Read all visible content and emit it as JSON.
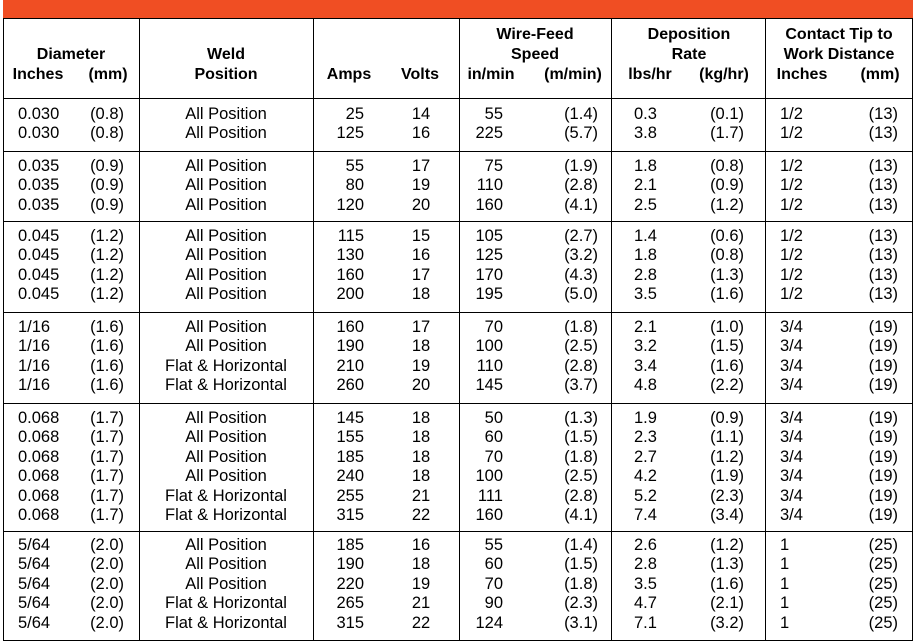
{
  "header": {
    "columns": [
      {
        "title": [
          "Diameter"
        ],
        "units": [
          "Inches",
          "(mm)"
        ]
      },
      {
        "title": [
          "Weld"
        ],
        "units": [
          "Position"
        ]
      },
      {
        "title": [],
        "units": [
          "Amps"
        ]
      },
      {
        "title": [],
        "units": [
          "Volts"
        ]
      },
      {
        "title": [
          "Wire-Feed",
          "Speed"
        ],
        "units": [
          "in/min",
          "(m/min)"
        ]
      },
      {
        "title": [
          "Deposition",
          "Rate"
        ],
        "units": [
          "lbs/hr",
          "(kg/hr)"
        ]
      },
      {
        "title": [
          "Contact Tip to",
          "Work Distance"
        ],
        "units": [
          "Inches",
          "(mm)"
        ]
      }
    ]
  },
  "table": {
    "groups": [
      [
        [
          "0.030",
          "(0.8)",
          "All Position",
          "25",
          "14",
          "55",
          "(1.4)",
          "0.3",
          "(0.1)",
          "1/2",
          "(13)"
        ],
        [
          "0.030",
          "(0.8)",
          "All Position",
          "125",
          "16",
          "225",
          "(5.7)",
          "3.8",
          "(1.7)",
          "1/2",
          "(13)"
        ]
      ],
      [
        [
          "0.035",
          "(0.9)",
          "All Position",
          "55",
          "17",
          "75",
          "(1.9)",
          "1.8",
          "(0.8)",
          "1/2",
          "(13)"
        ],
        [
          "0.035",
          "(0.9)",
          "All Position",
          "80",
          "19",
          "110",
          "(2.8)",
          "2.1",
          "(0.9)",
          "1/2",
          "(13)"
        ],
        [
          "0.035",
          "(0.9)",
          "All Position",
          "120",
          "20",
          "160",
          "(4.1)",
          "2.5",
          "(1.2)",
          "1/2",
          "(13)"
        ]
      ],
      [
        [
          "0.045",
          "(1.2)",
          "All Position",
          "115",
          "15",
          "105",
          "(2.7)",
          "1.4",
          "(0.6)",
          "1/2",
          "(13)"
        ],
        [
          "0.045",
          "(1.2)",
          "All Position",
          "130",
          "16",
          "125",
          "(3.2)",
          "1.8",
          "(0.8)",
          "1/2",
          "(13)"
        ],
        [
          "0.045",
          "(1.2)",
          "All Position",
          "160",
          "17",
          "170",
          "(4.3)",
          "2.8",
          "(1.3)",
          "1/2",
          "(13)"
        ],
        [
          "0.045",
          "(1.2)",
          "All Position",
          "200",
          "18",
          "195",
          "(5.0)",
          "3.5",
          "(1.6)",
          "1/2",
          "(13)"
        ]
      ],
      [
        [
          "1/16",
          "(1.6)",
          "All Position",
          "160",
          "17",
          "70",
          "(1.8)",
          "2.1",
          "(1.0)",
          "3/4",
          "(19)"
        ],
        [
          "1/16",
          "(1.6)",
          "All Position",
          "190",
          "18",
          "100",
          "(2.5)",
          "3.2",
          "(1.5)",
          "3/4",
          "(19)"
        ],
        [
          "1/16",
          "(1.6)",
          "Flat & Horizontal",
          "210",
          "19",
          "110",
          "(2.8)",
          "3.4",
          "(1.6)",
          "3/4",
          "(19)"
        ],
        [
          "1/16",
          "(1.6)",
          "Flat & Horizontal",
          "260",
          "20",
          "145",
          "(3.7)",
          "4.8",
          "(2.2)",
          "3/4",
          "(19)"
        ]
      ],
      [
        [
          "0.068",
          "(1.7)",
          "All Position",
          "145",
          "18",
          "50",
          "(1.3)",
          "1.9",
          "(0.9)",
          "3/4",
          "(19)"
        ],
        [
          "0.068",
          "(1.7)",
          "All Position",
          "155",
          "18",
          "60",
          "(1.5)",
          "2.3",
          "(1.1)",
          "3/4",
          "(19)"
        ],
        [
          "0.068",
          "(1.7)",
          "All Position",
          "185",
          "18",
          "70",
          "(1.8)",
          "2.7",
          "(1.2)",
          "3/4",
          "(19)"
        ],
        [
          "0.068",
          "(1.7)",
          "All Position",
          "240",
          "18",
          "100",
          "(2.5)",
          "4.2",
          "(1.9)",
          "3/4",
          "(19)"
        ],
        [
          "0.068",
          "(1.7)",
          "Flat & Horizontal",
          "255",
          "21",
          "111",
          "(2.8)",
          "5.2",
          "(2.3)",
          "3/4",
          "(19)"
        ],
        [
          "0.068",
          "(1.7)",
          "Flat & Horizontal",
          "315",
          "22",
          "160",
          "(4.1)",
          "7.4",
          "(3.4)",
          "3/4",
          "(19)"
        ]
      ],
      [
        [
          "5/64",
          "(2.0)",
          "All Position",
          "185",
          "16",
          "55",
          "(1.4)",
          "2.6",
          "(1.2)",
          "1",
          "(25)"
        ],
        [
          "5/64",
          "(2.0)",
          "All Position",
          "190",
          "18",
          "60",
          "(1.5)",
          "2.8",
          "(1.3)",
          "1",
          "(25)"
        ],
        [
          "5/64",
          "(2.0)",
          "All Position",
          "220",
          "19",
          "70",
          "(1.8)",
          "3.5",
          "(1.6)",
          "1",
          "(25)"
        ],
        [
          "5/64",
          "(2.0)",
          "Flat & Horizontal",
          "265",
          "21",
          "90",
          "(2.3)",
          "4.7",
          "(2.1)",
          "1",
          "(25)"
        ],
        [
          "5/64",
          "(2.0)",
          "Flat & Horizontal",
          "315",
          "22",
          "124",
          "(3.1)",
          "7.1",
          "(3.2)",
          "1",
          "(25)"
        ]
      ]
    ]
  }
}
